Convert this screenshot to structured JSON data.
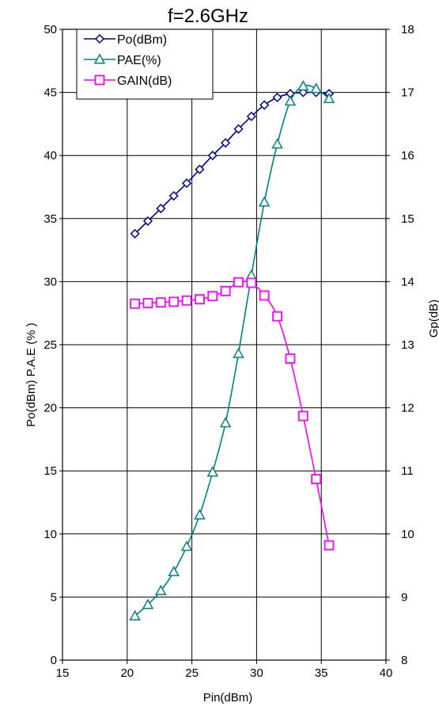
{
  "chart_data": {
    "type": "line",
    "title": "f=2.6GHz",
    "xlabel": "Pin(dBm)",
    "ylabel_left": "Po(dBm)   P.A.E (% )",
    "ylabel_right": "Gp(dB)",
    "xlim": [
      15,
      40
    ],
    "ylim_left": [
      0,
      50
    ],
    "ylim_right": [
      8,
      18
    ],
    "x_ticks": [
      "15",
      "20",
      "25",
      "30",
      "35",
      "40"
    ],
    "y_left_ticks": [
      "0",
      "5",
      "10",
      "15",
      "20",
      "25",
      "30",
      "35",
      "40",
      "45",
      "50"
    ],
    "y_right_ticks": [
      "8",
      "9",
      "10",
      "11",
      "12",
      "13",
      "14",
      "15",
      "16",
      "17",
      "18"
    ],
    "grid": true,
    "legend_position": "top-left",
    "series": [
      {
        "name": "Po(dBm)",
        "axis": "left",
        "marker": "diamond",
        "color": "#000080",
        "x": [
          20.6,
          21.6,
          22.6,
          23.6,
          24.6,
          25.6,
          26.6,
          27.6,
          28.6,
          29.6,
          30.6,
          31.6,
          32.6,
          33.6,
          34.6,
          35.6
        ],
        "y": [
          33.8,
          34.8,
          35.8,
          36.8,
          37.8,
          38.9,
          40.0,
          41.0,
          42.1,
          43.1,
          44.0,
          44.6,
          44.9,
          45.0,
          45.0,
          44.9
        ]
      },
      {
        "name": "PAE(%)",
        "axis": "left",
        "marker": "triangle",
        "color": "#008080",
        "x": [
          20.6,
          21.6,
          22.6,
          23.6,
          24.6,
          25.6,
          26.6,
          27.6,
          28.6,
          29.6,
          30.6,
          31.6,
          32.6,
          33.6,
          34.6,
          35.6
        ],
        "y": [
          3.5,
          4.4,
          5.5,
          7.0,
          9.0,
          11.5,
          14.9,
          18.8,
          24.3,
          30.5,
          36.3,
          40.9,
          44.3,
          45.5,
          45.3,
          44.5
        ]
      },
      {
        "name": "GAIN(dB)",
        "axis": "right",
        "marker": "square",
        "color": "#FF00FF",
        "x": [
          20.6,
          21.6,
          22.6,
          23.6,
          24.6,
          25.6,
          26.6,
          27.6,
          28.6,
          29.6,
          30.6,
          31.6,
          32.6,
          33.6,
          34.6,
          35.6
        ],
        "y": [
          13.65,
          13.66,
          13.67,
          13.68,
          13.7,
          13.72,
          13.77,
          13.85,
          13.99,
          13.98,
          13.78,
          13.45,
          12.78,
          11.87,
          10.87,
          9.82
        ]
      }
    ]
  }
}
